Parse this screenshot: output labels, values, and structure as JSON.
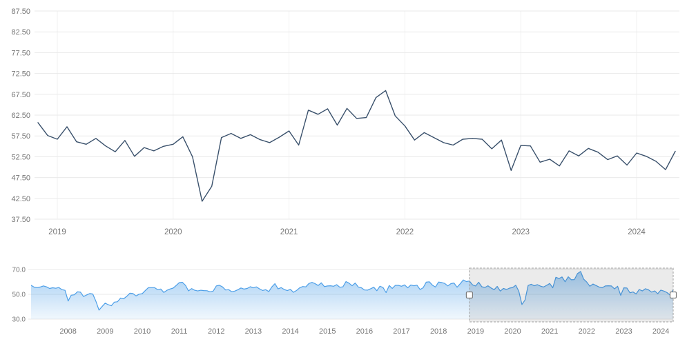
{
  "colors": {
    "background": "#ffffff",
    "main_line": "#39506b",
    "grid": "#e9e9e9",
    "grid_vertical": "#f1f1f1",
    "axis_label": "#757575",
    "nav_line": "#4d9fe8",
    "nav_fill_top": "rgba(77,159,232,0.50)",
    "nav_fill_bottom": "rgba(77,159,232,0.08)",
    "selection_fill": "rgba(0,0,0,0.08)",
    "selection_border": "#9e9e9e",
    "handle_fill": "#ffffff",
    "handle_border": "#7a7a7a"
  },
  "chart_data": [
    {
      "id": "main-chart",
      "type": "line",
      "title": "",
      "x_start": "2018-11",
      "x_interval": "monthly",
      "ylim": [
        37.5,
        87.5
      ],
      "y_tick_labels": [
        "37.50",
        "42.50",
        "47.50",
        "52.50",
        "57.50",
        "62.50",
        "67.50",
        "72.50",
        "77.50",
        "82.50",
        "87.50"
      ],
      "x_ticks": [
        {
          "label": "2019",
          "month_offset": 2
        },
        {
          "label": "2020",
          "month_offset": 14
        },
        {
          "label": "2021",
          "month_offset": 26
        },
        {
          "label": "2022",
          "month_offset": 38
        },
        {
          "label": "2023",
          "month_offset": 50
        },
        {
          "label": "2024",
          "month_offset": 62
        }
      ],
      "series": [
        {
          "name": "index-value",
          "values": [
            60.7,
            57.6,
            56.7,
            59.7,
            56.1,
            55.5,
            56.9,
            55.1,
            53.7,
            56.4,
            52.6,
            54.7,
            53.9,
            55.0,
            55.5,
            57.3,
            52.5,
            41.8,
            45.4,
            57.1,
            58.1,
            56.9,
            57.8,
            56.6,
            55.9,
            57.2,
            58.7,
            55.3,
            63.7,
            62.7,
            64.0,
            60.1,
            64.1,
            61.7,
            61.9,
            66.7,
            68.4,
            62.3,
            59.9,
            56.5,
            58.3,
            57.1,
            55.9,
            55.3,
            56.7,
            56.9,
            56.7,
            54.4,
            56.5,
            49.2,
            55.2,
            55.1,
            51.2,
            51.9,
            50.3,
            53.9,
            52.7,
            54.5,
            53.6,
            51.8,
            52.7,
            50.5,
            53.4,
            52.6,
            51.4,
            49.4,
            53.8
          ]
        }
      ]
    },
    {
      "id": "navigator",
      "type": "area",
      "title": "",
      "x_start": "2007-01",
      "x_interval": "monthly",
      "ylim": [
        30,
        70
      ],
      "y_tick_labels": [
        "30.0",
        "50.0",
        "70.0"
      ],
      "x_ticks": [
        {
          "label": "2008",
          "month_offset": 12
        },
        {
          "label": "2009",
          "month_offset": 24
        },
        {
          "label": "2010",
          "month_offset": 36
        },
        {
          "label": "2011",
          "month_offset": 48
        },
        {
          "label": "2012",
          "month_offset": 60
        },
        {
          "label": "2013",
          "month_offset": 72
        },
        {
          "label": "2014",
          "month_offset": 84
        },
        {
          "label": "2015",
          "month_offset": 96
        },
        {
          "label": "2016",
          "month_offset": 108
        },
        {
          "label": "2017",
          "month_offset": 120
        },
        {
          "label": "2018",
          "month_offset": 132
        },
        {
          "label": "2019",
          "month_offset": 144
        },
        {
          "label": "2020",
          "month_offset": 156
        },
        {
          "label": "2021",
          "month_offset": 168
        },
        {
          "label": "2022",
          "month_offset": 180
        },
        {
          "label": "2023",
          "month_offset": 192
        },
        {
          "label": "2024",
          "month_offset": 204
        }
      ],
      "series": [
        {
          "name": "index-value",
          "values": [
            57.3,
            55.8,
            55.4,
            55.9,
            56.8,
            56.0,
            54.7,
            55.3,
            54.9,
            55.5,
            53.8,
            53.2,
            44.6,
            49.3,
            49.6,
            52.0,
            51.7,
            48.2,
            49.5,
            50.6,
            50.2,
            44.4,
            37.3,
            40.1,
            42.9,
            41.6,
            40.8,
            43.7,
            44.0,
            47.0,
            46.4,
            48.4,
            50.9,
            50.6,
            48.7,
            50.1,
            50.5,
            53.0,
            55.4,
            55.4,
            55.4,
            53.8,
            54.3,
            51.5,
            53.2,
            54.3,
            55.0,
            57.1,
            59.4,
            59.7,
            57.3,
            52.8,
            54.6,
            53.3,
            52.7,
            53.3,
            53.0,
            52.9,
            52.0,
            52.6,
            56.8,
            57.3,
            56.0,
            53.5,
            53.7,
            52.1,
            52.6,
            53.7,
            55.1,
            54.2,
            54.7,
            56.1,
            55.2,
            56.0,
            54.4,
            53.1,
            53.7,
            52.2,
            56.0,
            58.6,
            54.4,
            55.4,
            53.9,
            53.0,
            54.0,
            51.6,
            53.1,
            55.2,
            56.3,
            56.0,
            58.7,
            59.6,
            58.6,
            57.1,
            59.3,
            56.2,
            56.7,
            56.9,
            56.5,
            57.8,
            55.7,
            56.0,
            60.3,
            59.0,
            56.9,
            59.1,
            55.9,
            55.3,
            53.5,
            53.4,
            54.5,
            55.7,
            52.9,
            56.5,
            55.5,
            51.4,
            57.1,
            54.8,
            57.2,
            57.2,
            56.5,
            57.6,
            55.2,
            57.5,
            56.9,
            57.4,
            53.9,
            55.3,
            59.8,
            60.1,
            57.4,
            55.9,
            59.9,
            59.5,
            58.8,
            56.8,
            58.6,
            59.1,
            55.7,
            58.5,
            61.6,
            60.3,
            60.7,
            57.6,
            56.7,
            59.7,
            56.1,
            55.5,
            56.9,
            55.1,
            53.7,
            56.4,
            52.6,
            54.7,
            53.9,
            55.0,
            55.5,
            57.3,
            52.5,
            41.8,
            45.4,
            57.1,
            58.1,
            56.9,
            57.8,
            56.6,
            55.9,
            57.2,
            58.7,
            55.3,
            63.7,
            62.7,
            64.0,
            60.1,
            64.1,
            61.7,
            61.9,
            66.7,
            68.4,
            62.3,
            59.9,
            56.5,
            58.3,
            57.1,
            55.9,
            55.3,
            56.7,
            56.9,
            56.7,
            54.4,
            56.5,
            49.2,
            55.2,
            55.1,
            51.2,
            51.9,
            50.3,
            53.9,
            52.7,
            54.5,
            53.6,
            51.8,
            52.7,
            50.5,
            53.4,
            52.6,
            51.4,
            49.4,
            53.8
          ]
        }
      ],
      "selection": {
        "start_month_offset": 142,
        "end_month_offset": 208
      }
    }
  ]
}
